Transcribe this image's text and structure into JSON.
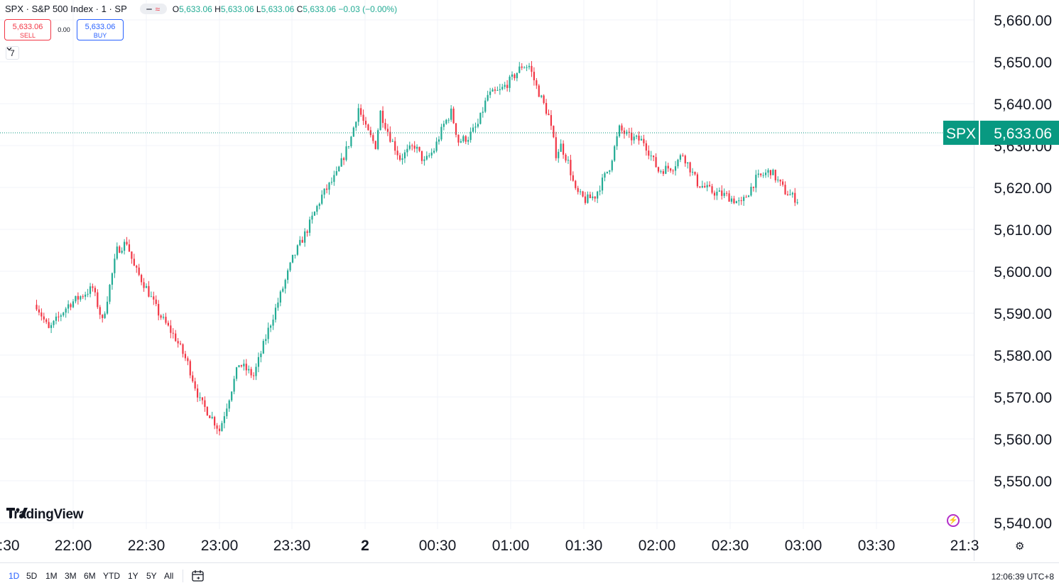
{
  "header": {
    "symbol_title": "SPX · S&P 500 Index · 1 · SP",
    "ohlc": [
      {
        "k": "O",
        "v": "5,633.06"
      },
      {
        "k": "H",
        "v": "5,633.06"
      },
      {
        "k": "L",
        "v": "5,633.06"
      },
      {
        "k": "C",
        "v": "5,633.06"
      }
    ],
    "change": "−0.03 (−0.00%)"
  },
  "trade": {
    "sell_price": "5,633.06",
    "sell_label": "SELL",
    "spread": "0.00",
    "buy_price": "5,633.06",
    "buy_label": "BUY"
  },
  "indicators_toggle": {
    "count": "7"
  },
  "brand": {
    "name": "TradingView"
  },
  "price_tag": {
    "symbol": "SPX",
    "price": "5,633.06",
    "value": 5633.06
  },
  "colors": {
    "up": "#22ab94",
    "down": "#f23645",
    "tag": "#089981",
    "accent": "#2962ff"
  },
  "chart_data": {
    "type": "candlestick",
    "interval": "1",
    "x_labels": [
      ":30",
      "22:00",
      "22:30",
      "23:00",
      "23:30",
      "2",
      "00:30",
      "01:00",
      "01:30",
      "02:00",
      "02:30",
      "03:00",
      "03:30",
      "21:3"
    ],
    "y_ticks": [
      5540,
      5550,
      5560,
      5570,
      5580,
      5590,
      5600,
      5610,
      5620,
      5630,
      5640,
      5650,
      5660
    ],
    "y_tick_labels": [
      "5,540.00",
      "5,550.00",
      "5,560.00",
      "5,570.00",
      "5,580.00",
      "5,590.00",
      "5,600.00",
      "5,610.00",
      "5,620.00",
      "5,630.00",
      "5,640.00",
      "5,650.00",
      "5,660.00"
    ],
    "ylim": [
      5535,
      5667
    ],
    "x_range_minutes": [
      -75,
      237
    ],
    "grid": true,
    "anchors": [
      [
        -75,
        5592
      ],
      [
        -70,
        5586
      ],
      [
        -62,
        5592
      ],
      [
        -52,
        5596
      ],
      [
        -48,
        5588
      ],
      [
        -42,
        5605
      ],
      [
        -38,
        5607
      ],
      [
        -35,
        5601
      ],
      [
        -30,
        5596
      ],
      [
        -25,
        5590
      ],
      [
        -18,
        5584
      ],
      [
        -13,
        5578
      ],
      [
        -8,
        5569
      ],
      [
        -3,
        5565
      ],
      [
        0,
        5562
      ],
      [
        3,
        5568
      ],
      [
        8,
        5578
      ],
      [
        14,
        5575
      ],
      [
        20,
        5586
      ],
      [
        26,
        5596
      ],
      [
        30,
        5603
      ],
      [
        36,
        5610
      ],
      [
        42,
        5618
      ],
      [
        48,
        5623
      ],
      [
        54,
        5632
      ],
      [
        57,
        5639
      ],
      [
        60,
        5634
      ],
      [
        64,
        5630
      ],
      [
        66,
        5638
      ],
      [
        70,
        5632
      ],
      [
        74,
        5627
      ],
      [
        80,
        5630
      ],
      [
        84,
        5626
      ],
      [
        88,
        5629
      ],
      [
        92,
        5635
      ],
      [
        95,
        5638
      ],
      [
        98,
        5631
      ],
      [
        102,
        5632
      ],
      [
        106,
        5635
      ],
      [
        110,
        5642
      ],
      [
        115,
        5643
      ],
      [
        120,
        5646
      ],
      [
        124,
        5649
      ],
      [
        127,
        5649
      ],
      [
        130,
        5644
      ],
      [
        135,
        5637
      ],
      [
        138,
        5628
      ],
      [
        140,
        5630
      ],
      [
        143,
        5626
      ],
      [
        146,
        5619
      ],
      [
        150,
        5617
      ],
      [
        154,
        5618
      ],
      [
        160,
        5625
      ],
      [
        164,
        5634
      ],
      [
        168,
        5632
      ],
      [
        174,
        5631
      ],
      [
        180,
        5624
      ],
      [
        186,
        5625
      ],
      [
        190,
        5628
      ],
      [
        196,
        5621
      ],
      [
        202,
        5619
      ],
      [
        208,
        5618
      ],
      [
        214,
        5616
      ],
      [
        220,
        5622
      ],
      [
        226,
        5624
      ],
      [
        232,
        5619
      ],
      [
        237,
        5617
      ]
    ],
    "candles_note_unused": ""
  },
  "bottom_bar": {
    "ranges": [
      "1D",
      "5D",
      "1M",
      "3M",
      "6M",
      "YTD",
      "1Y",
      "5Y",
      "All"
    ],
    "active": "1D",
    "time": "12:06:39 UTC+8"
  }
}
